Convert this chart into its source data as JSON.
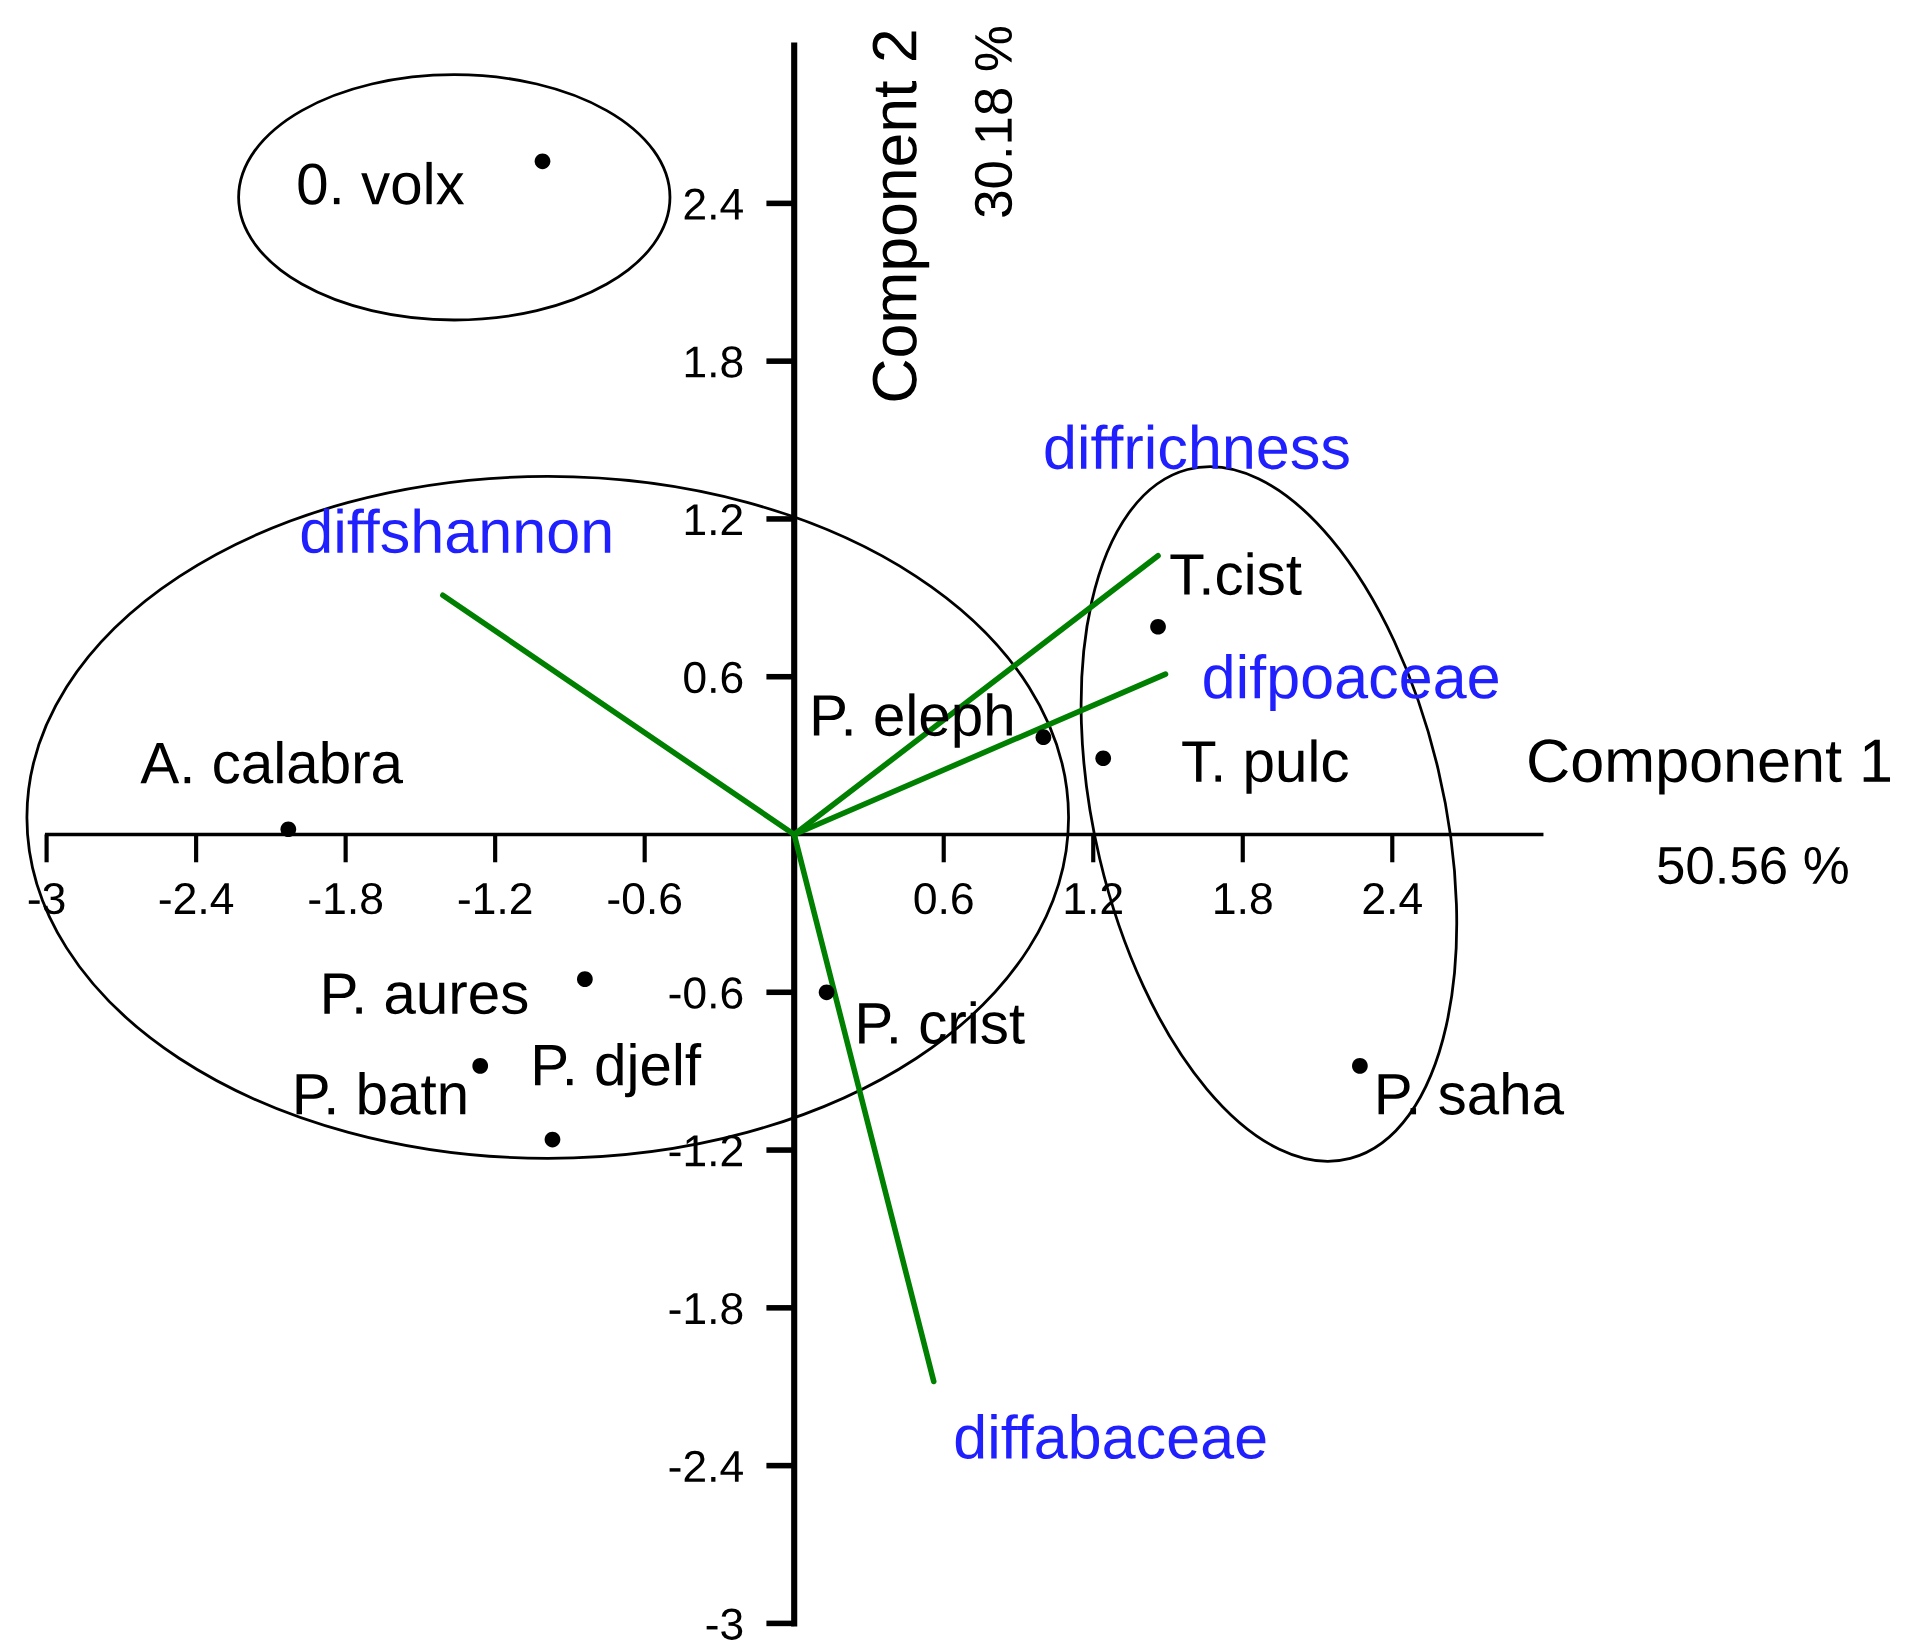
{
  "chart_data": {
    "type": "scatter",
    "xlabel": "Component 1",
    "ylabel": "Component 2",
    "annotations": [
      "50.56 %",
      "30.18 %"
    ],
    "xlim": [
      -3,
      3
    ],
    "ylim": [
      -3,
      3
    ],
    "xticks": [
      -3,
      -2.4,
      -1.8,
      -1.2,
      -0.6,
      0.6,
      1.2,
      1.8,
      2.4
    ],
    "yticks": [
      -3,
      -2.4,
      -1.8,
      -1.2,
      -0.6,
      0.6,
      1.2,
      1.8,
      2.4
    ],
    "marker": "circle",
    "series": [
      {
        "name": "0. volx",
        "color": "#000000",
        "x": [
          -1.01
        ],
        "values": [
          2.56
        ]
      },
      {
        "name": "A. calabra",
        "color": "#000000",
        "x": [
          -2.03
        ],
        "values": [
          0.02
        ]
      },
      {
        "name": "P. eleph",
        "color": "#000000",
        "x": [
          1.0
        ],
        "values": [
          0.37
        ]
      },
      {
        "name": "T.cist",
        "color": "#000000",
        "x": [
          1.46
        ],
        "values": [
          0.79
        ]
      },
      {
        "name": "T. pulc",
        "color": "#000000",
        "x": [
          1.24
        ],
        "values": [
          0.29
        ]
      },
      {
        "name": "P. saha",
        "color": "#000000",
        "x": [
          2.27
        ],
        "values": [
          -0.88
        ]
      },
      {
        "name": "P. crist",
        "color": "#000000",
        "x": [
          0.13
        ],
        "values": [
          -0.6
        ]
      },
      {
        "name": "P. aures",
        "color": "#000000",
        "x": [
          -0.84
        ],
        "values": [
          -0.55
        ]
      },
      {
        "name": "P. batn",
        "color": "#000000",
        "x": [
          -1.26
        ],
        "values": [
          -0.88
        ]
      },
      {
        "name": "P. djelf",
        "color": "#000000",
        "x": [
          -0.97
        ],
        "values": [
          -1.16
        ]
      },
      {
        "name": "diffshannon",
        "type": "line",
        "marker": "none",
        "color": "#008000",
        "x": [
          0,
          -1.41
        ],
        "values": [
          0,
          0.91
        ]
      },
      {
        "name": "diffrichness",
        "type": "line",
        "marker": "none",
        "color": "#008000",
        "x": [
          0,
          1.46
        ],
        "values": [
          0,
          1.06
        ]
      },
      {
        "name": "difpoaceae",
        "type": "line",
        "marker": "none",
        "color": "#008000",
        "x": [
          0,
          1.49
        ],
        "values": [
          0,
          0.61
        ]
      },
      {
        "name": "diffabaceae",
        "type": "line",
        "marker": "none",
        "color": "#008000",
        "x": [
          0,
          0.56
        ],
        "values": [
          0,
          -2.08
        ]
      }
    ]
  }
}
